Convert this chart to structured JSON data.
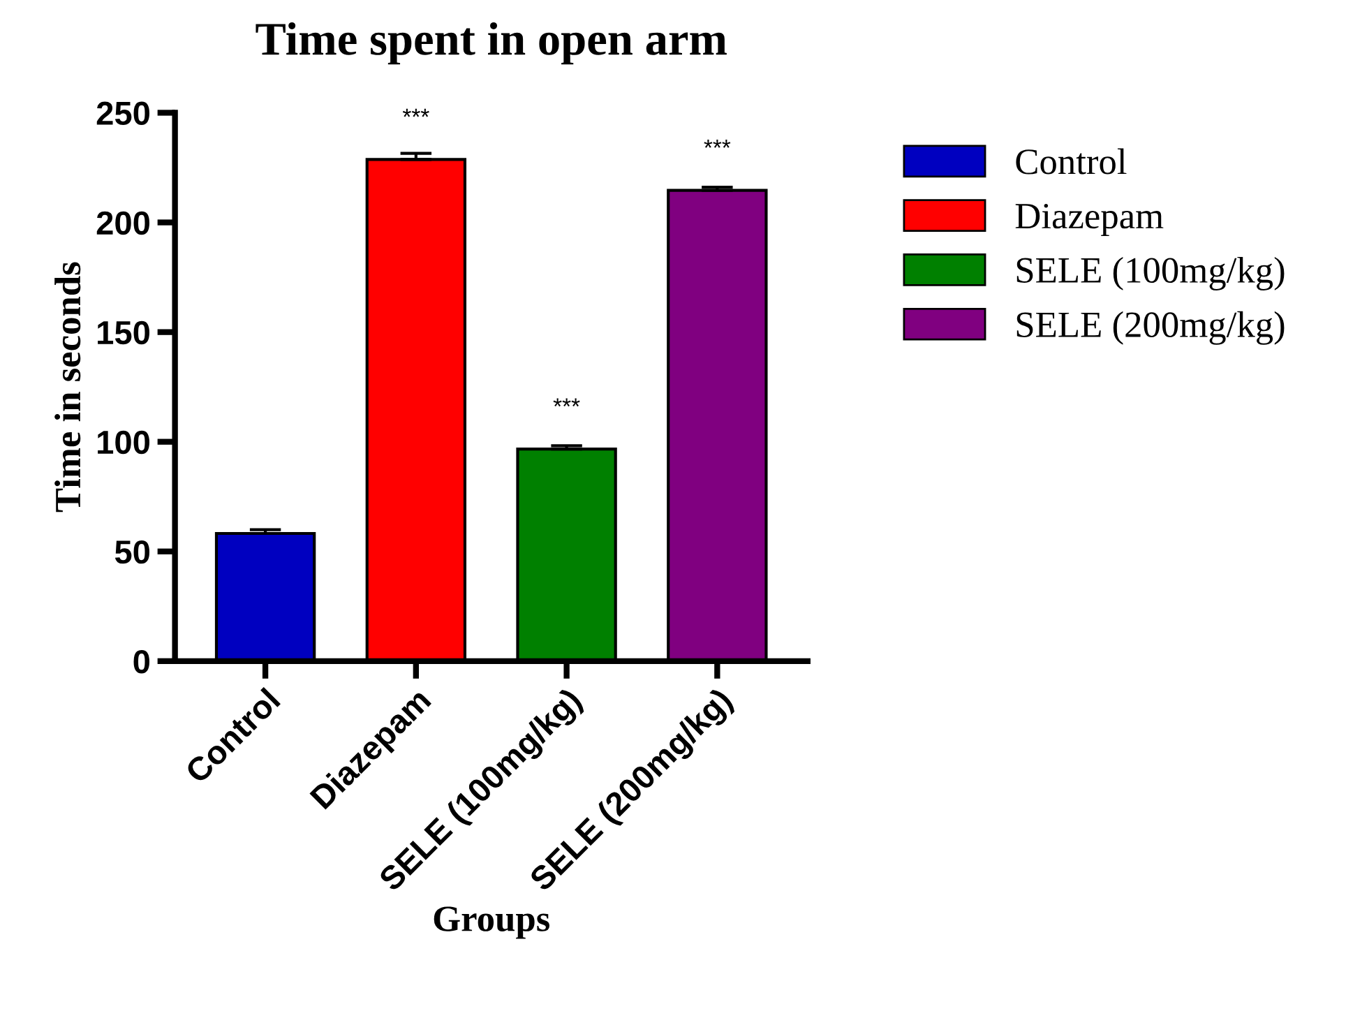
{
  "chart_data": {
    "type": "bar",
    "title": "Time spent in open arm",
    "xlabel": "Groups",
    "ylabel": "Time in seconds",
    "categories": [
      "Control",
      "Diazepam",
      "SELE (100mg/kg)",
      "SELE (200mg/kg)"
    ],
    "series": [
      {
        "name": "Control",
        "color": "#0000c0",
        "values": [
          58.2,
          null,
          null,
          null
        ],
        "errors": [
          1.7,
          null,
          null,
          null
        ]
      },
      {
        "name": "Diazepam",
        "color": "#ff0000",
        "values": [
          null,
          228.7,
          null,
          null
        ],
        "errors": [
          null,
          2.8,
          null,
          null
        ]
      },
      {
        "name": "SELE (100mg/kg)",
        "color": "#008000",
        "values": [
          null,
          null,
          96.7,
          null
        ],
        "errors": [
          null,
          null,
          1.5,
          null
        ]
      },
      {
        "name": "SELE (200mg/kg)",
        "color": "#800080",
        "values": [
          null,
          null,
          null,
          214.6
        ],
        "errors": [
          null,
          null,
          null,
          1.5
        ]
      }
    ],
    "annotations": [
      {
        "text": "***",
        "x": "Diazepam",
        "y": 228.7
      },
      {
        "text": "***",
        "x": "SELE (100mg/kg)",
        "y": 96.7
      },
      {
        "text": "***",
        "x": "SELE (200mg/kg)",
        "y": 214.6
      }
    ],
    "ylim": [
      0,
      250
    ],
    "yticks": [
      0,
      50,
      100,
      150,
      200,
      250
    ],
    "grid": false,
    "legend": "right"
  }
}
